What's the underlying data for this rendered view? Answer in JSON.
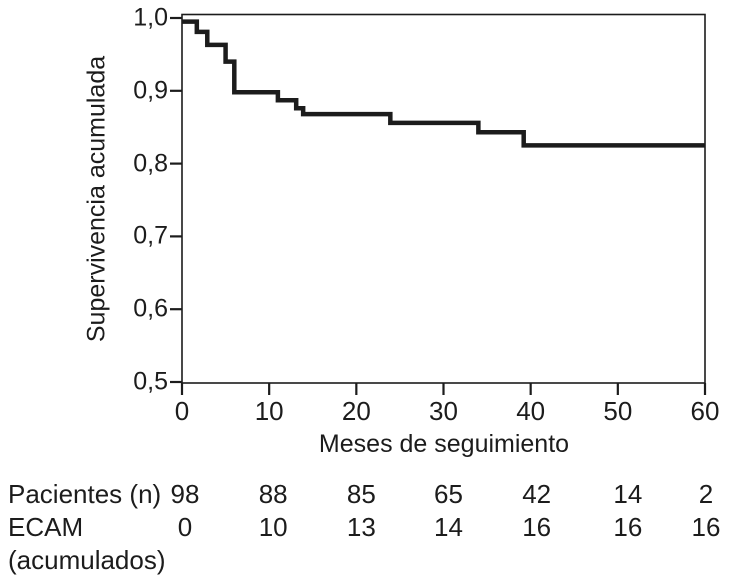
{
  "figure": {
    "background": "#ffffff",
    "ink_color": "#1c1c1c"
  },
  "chart_data": {
    "type": "line",
    "subtype": "kaplan-meier-step-curve",
    "title": "",
    "xlabel": "Meses de seguimiento",
    "ylabel": "Supervivencia acumulada",
    "xlim": [
      0,
      60
    ],
    "ylim": [
      0.5,
      1.0
    ],
    "x_ticks": [
      0,
      10,
      20,
      30,
      40,
      50,
      60
    ],
    "x_tick_labels": [
      "0",
      "10",
      "20",
      "30",
      "40",
      "50",
      "60"
    ],
    "y_ticks": [
      1.0,
      0.9,
      0.8,
      0.7,
      0.6,
      0.5
    ],
    "y_tick_labels": [
      "1,0",
      "0,9",
      "0,8",
      "0,7",
      "0,6",
      "0,5"
    ],
    "grid": false,
    "legend": false,
    "frame": "full-box",
    "series": [
      {
        "name": "Supervivencia acumulada",
        "step": "after",
        "color": "#1c1c1c",
        "points": [
          [
            0,
            0.995
          ],
          [
            1.7,
            0.981
          ],
          [
            2.9,
            0.963
          ],
          [
            5.0,
            0.94
          ],
          [
            6.0,
            0.898
          ],
          [
            11.0,
            0.887
          ],
          [
            13.1,
            0.876
          ],
          [
            13.9,
            0.868
          ],
          [
            23.9,
            0.856
          ],
          [
            34.0,
            0.843
          ],
          [
            39.2,
            0.825
          ],
          [
            60,
            0.825
          ]
        ]
      }
    ]
  },
  "risk_table": {
    "row1_label": "Pacientes (n)",
    "row2_label": "ECAM",
    "row2_label_line2": "(acumulados)",
    "patients": [
      "98",
      "88",
      "85",
      "65",
      "42",
      "14",
      "2"
    ],
    "ecam": [
      "0",
      "10",
      "13",
      "14",
      "16",
      "16",
      "16"
    ]
  }
}
